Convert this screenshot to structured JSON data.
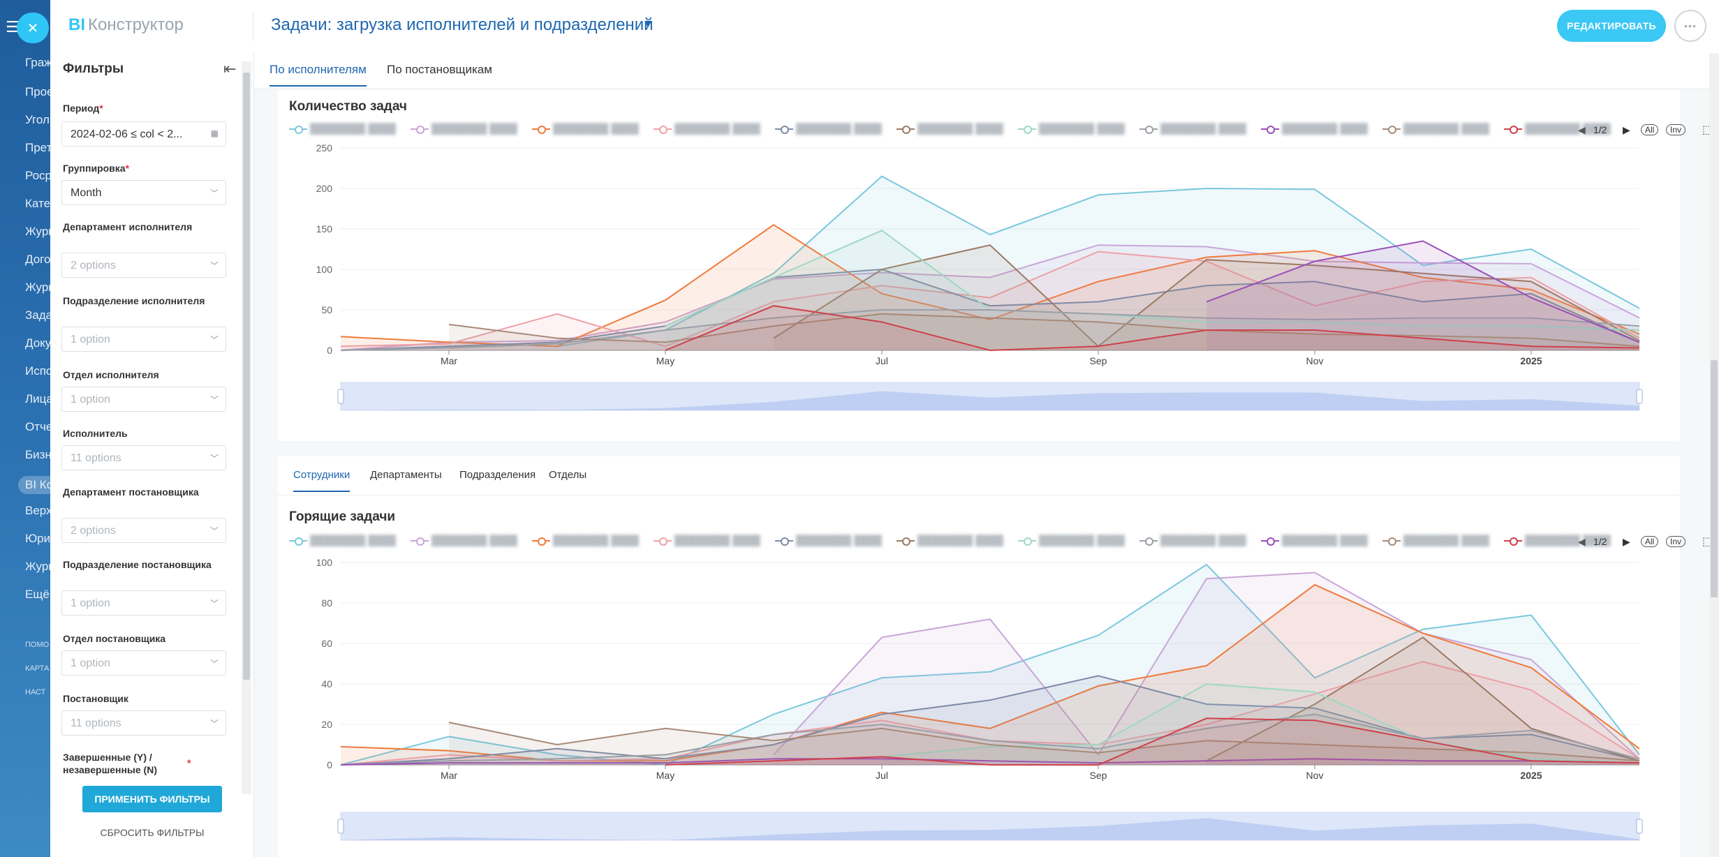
{
  "nav": {
    "items": [
      "Граж",
      "Прое",
      "Угол",
      "Прет",
      "Роср",
      "Кате",
      "Журн",
      "Дого",
      "Журн",
      "Зада",
      "Доку",
      "Испо",
      "Лица",
      "Отче",
      "Бизн",
      "BI Ко",
      "Верх",
      "Юри",
      "Журн",
      "Ещё"
    ],
    "small": [
      "ПОМО",
      "КАРТА",
      "НАСТ"
    ],
    "active_index": 15
  },
  "header": {
    "brand_bi": "BI",
    "brand_name": "Конструктор",
    "title": "Задачи: загрузка исполнителей и подразделений",
    "edit_label": "РЕДАКТИРОВАТЬ",
    "more_label": "•••"
  },
  "filters": {
    "title": "Фильтры",
    "period_label": "Период",
    "period_value": "2024-02-06 ≤ col < 2...",
    "group_label": "Группировка",
    "group_value": "Month",
    "dept_exec_label": "Департамент исполнителя",
    "dept_exec_value": "2 options",
    "subdiv_exec_label": "Подразделение исполнителя",
    "subdiv_exec_value": "1 option",
    "otdel_exec_label": "Отдел исполнителя",
    "otdel_exec_value": "1 option",
    "exec_label": "Исполнитель",
    "exec_value": "11 options",
    "dept_setter_label": "Департамент постановщика",
    "dept_setter_value": "2 options",
    "subdiv_setter_label": "Подразделение постановщика",
    "subdiv_setter_value": "1 option",
    "otdel_setter_label": "Отдел постановщика",
    "otdel_setter_value": "1 option",
    "setter_label": "Постановщик",
    "setter_value": "11 options",
    "done_label": "Завершенные (Y) / незавершенные (N)",
    "apply_label": "ПРИМЕНИТЬ ФИЛЬТРЫ",
    "reset_label": "СБРОСИТЬ ФИЛЬТРЫ",
    "required_mark": "*"
  },
  "tabs": [
    "По исполнителям",
    "По постановщикам"
  ],
  "subtabs": [
    "Сотрудники",
    "Департаменты",
    "Подразделения",
    "Отделы"
  ],
  "pager": {
    "page": "1/2",
    "all": "All",
    "inv": "Inv"
  },
  "colors": {
    "accent": "#2fc6f6",
    "link": "#2067b0",
    "series": [
      "#7ac8dc",
      "#c9a6d8",
      "#f07a3c",
      "#eda0a6",
      "#7f8aa8",
      "#9b7a64",
      "#9ed8c4",
      "#9aa0a8",
      "#9a4fb8",
      "#a88a78",
      "#d0404a"
    ]
  },
  "chart_data": [
    {
      "type": "area",
      "title": "Количество задач",
      "x_tick_labels": [
        "Mar",
        "May",
        "Jul",
        "Sep",
        "Nov",
        "2025"
      ],
      "x": [
        "2024-02",
        "2024-03",
        "2024-04",
        "2024-05",
        "2024-06",
        "2024-07",
        "2024-08",
        "2024-09",
        "2024-10",
        "2024-11",
        "2024-12",
        "2025-01",
        "2025-02"
      ],
      "ylim": [
        0,
        250
      ],
      "yticks": [
        0,
        50,
        100,
        150,
        200,
        250
      ],
      "series": [
        {
          "name": "s1",
          "values": [
            0,
            10,
            5,
            25,
            95,
            215,
            143,
            192,
            200,
            199,
            105,
            125,
            52
          ]
        },
        {
          "name": "s2",
          "values": [
            0,
            10,
            12,
            35,
            88,
            96,
            90,
            130,
            128,
            110,
            108,
            107,
            40
          ]
        },
        {
          "name": "s3",
          "values": [
            17,
            10,
            5,
            62,
            155,
            70,
            38,
            85,
            115,
            123,
            90,
            75,
            20
          ]
        },
        {
          "name": "s4",
          "values": [
            5,
            8,
            45,
            5,
            60,
            80,
            65,
            122,
            110,
            55,
            85,
            90,
            15
          ]
        },
        {
          "name": "s5",
          "values": [
            0,
            5,
            10,
            30,
            90,
            100,
            55,
            60,
            80,
            85,
            60,
            70,
            10
          ]
        },
        {
          "name": "s6",
          "values": [
            null,
            null,
            null,
            null,
            15,
            100,
            130,
            5,
            112,
            105,
            95,
            85,
            12
          ]
        },
        {
          "name": "s7",
          "values": [
            null,
            null,
            null,
            30,
            90,
            148,
            50,
            45,
            35,
            35,
            30,
            30,
            25
          ]
        },
        {
          "name": "s8",
          "values": [
            0,
            3,
            8,
            25,
            40,
            50,
            50,
            45,
            40,
            38,
            40,
            40,
            30
          ]
        },
        {
          "name": "s9",
          "values": [
            null,
            null,
            null,
            null,
            null,
            null,
            null,
            null,
            60,
            110,
            135,
            65,
            10
          ]
        },
        {
          "name": "s10",
          "values": [
            null,
            32,
            15,
            10,
            30,
            45,
            40,
            35,
            25,
            20,
            18,
            15,
            5
          ]
        },
        {
          "name": "s11",
          "values": [
            null,
            null,
            null,
            0,
            55,
            35,
            0,
            5,
            25,
            25,
            15,
            5,
            3
          ]
        }
      ]
    },
    {
      "type": "area",
      "title": "Горящие задачи",
      "x_tick_labels": [
        "Mar",
        "May",
        "Jul",
        "Sep",
        "Nov",
        "2025"
      ],
      "x": [
        "2024-02",
        "2024-03",
        "2024-04",
        "2024-05",
        "2024-06",
        "2024-07",
        "2024-08",
        "2024-09",
        "2024-10",
        "2024-11",
        "2024-12",
        "2025-01",
        "2025-02"
      ],
      "ylim": [
        0,
        100
      ],
      "yticks": [
        0,
        20,
        40,
        60,
        80,
        100
      ],
      "series": [
        {
          "name": "s1",
          "values": [
            0,
            14,
            5,
            0,
            25,
            43,
            46,
            64,
            99,
            43,
            67,
            74,
            5
          ]
        },
        {
          "name": "s2",
          "values": [
            null,
            null,
            null,
            null,
            5,
            63,
            72,
            5,
            92,
            95,
            65,
            52,
            3
          ]
        },
        {
          "name": "s3",
          "values": [
            9,
            7,
            2,
            2,
            10,
            26,
            18,
            39,
            49,
            89,
            65,
            48,
            8
          ]
        },
        {
          "name": "s4",
          "values": [
            0,
            5,
            2,
            3,
            15,
            22,
            12,
            10,
            20,
            35,
            51,
            37,
            3
          ]
        },
        {
          "name": "s5",
          "values": [
            0,
            3,
            8,
            3,
            10,
            25,
            32,
            44,
            30,
            28,
            13,
            15,
            2
          ]
        },
        {
          "name": "s6",
          "values": [
            null,
            null,
            null,
            null,
            null,
            null,
            null,
            null,
            2,
            30,
            63,
            18,
            2
          ]
        },
        {
          "name": "s7",
          "values": [
            null,
            null,
            null,
            null,
            null,
            4,
            9,
            10,
            40,
            36,
            12,
            3,
            1
          ]
        },
        {
          "name": "s8",
          "values": [
            0,
            2,
            3,
            5,
            15,
            20,
            12,
            8,
            18,
            25,
            13,
            17,
            3
          ]
        },
        {
          "name": "s9",
          "values": [
            0,
            1,
            1,
            1,
            3,
            3,
            2,
            1,
            2,
            3,
            2,
            2,
            1
          ]
        },
        {
          "name": "s10",
          "values": [
            null,
            21,
            10,
            18,
            12,
            18,
            10,
            6,
            12,
            10,
            8,
            6,
            2
          ]
        },
        {
          "name": "s11",
          "values": [
            null,
            null,
            null,
            0,
            2,
            4,
            0,
            0,
            23,
            22,
            12,
            2,
            1
          ]
        }
      ]
    }
  ]
}
